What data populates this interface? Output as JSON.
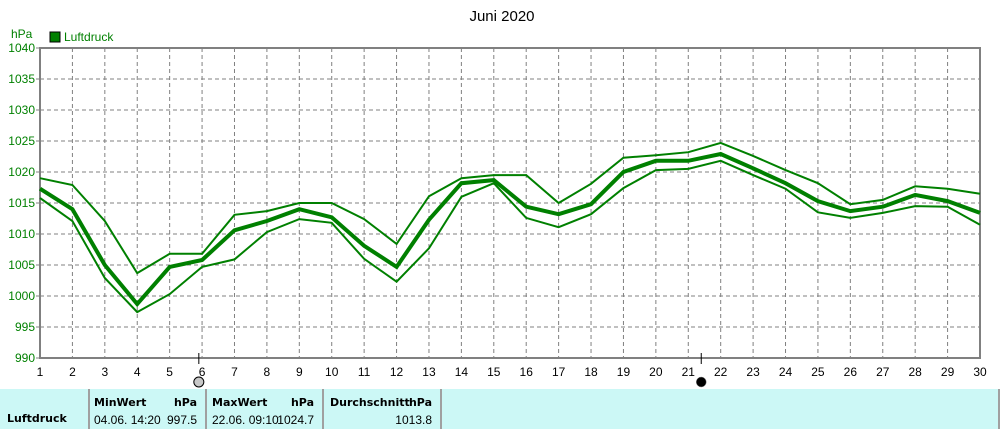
{
  "chart_data": {
    "type": "line",
    "title": "Juni 2020",
    "ylabel": "hPa",
    "xlabel": "",
    "ylim": [
      990,
      1040
    ],
    "yticks": [
      990,
      995,
      1000,
      1005,
      1010,
      1015,
      1020,
      1025,
      1030,
      1035,
      1040
    ],
    "x": [
      1,
      2,
      3,
      4,
      5,
      6,
      7,
      8,
      9,
      10,
      11,
      12,
      13,
      14,
      15,
      16,
      17,
      18,
      19,
      20,
      21,
      22,
      23,
      24,
      25,
      26,
      27,
      28,
      29,
      30
    ],
    "grid": true,
    "legend": {
      "position": "top-left",
      "entries": [
        "Luftdruck"
      ]
    },
    "series": [
      {
        "name": "Luftdruck Max",
        "width": 2,
        "values": [
          1019.0,
          1017.9,
          1012.1,
          1003.7,
          1006.8,
          1006.8,
          1013.1,
          1013.7,
          1015.0,
          1015.0,
          1012.4,
          1008.4,
          1016.1,
          1019.0,
          1019.5,
          1019.5,
          1015.0,
          1018.1,
          1022.3,
          1022.7,
          1023.2,
          1024.7,
          1022.6,
          1020.3,
          1018.2,
          1014.8,
          1015.5,
          1017.7,
          1017.3,
          1016.5
        ]
      },
      {
        "name": "Luftdruck",
        "width": 4,
        "values": [
          1017.3,
          1014.0,
          1005.0,
          998.7,
          1004.7,
          1005.8,
          1010.6,
          1012.1,
          1014.0,
          1012.7,
          1008.1,
          1004.7,
          1012.3,
          1018.2,
          1018.7,
          1014.4,
          1013.2,
          1014.8,
          1020.0,
          1021.8,
          1021.8,
          1022.9,
          1020.6,
          1018.2,
          1015.3,
          1013.7,
          1014.4,
          1016.3,
          1015.3,
          1013.4
        ]
      },
      {
        "name": "Luftdruck Min",
        "width": 2,
        "values": [
          1015.8,
          1012.1,
          1002.9,
          997.4,
          1000.3,
          1004.7,
          1005.9,
          1010.3,
          1012.4,
          1011.8,
          1006.0,
          1002.3,
          1007.7,
          1016.0,
          1018.2,
          1012.6,
          1011.1,
          1013.2,
          1017.4,
          1020.3,
          1020.5,
          1021.8,
          1019.5,
          1017.3,
          1013.5,
          1012.6,
          1013.4,
          1014.5,
          1014.4,
          1011.5
        ]
      }
    ],
    "annotations": [
      {
        "type": "full-moon",
        "x": 5.9
      },
      {
        "type": "new-moon",
        "x": 21.4
      }
    ],
    "color": "#008000"
  },
  "legend": {
    "label": "Luftdruck",
    "color": "#008000"
  },
  "stats": {
    "row_label": "Luftdruck",
    "min": {
      "header": "MinWert",
      "unit": "hPa",
      "datetime": "04.06.  14:20",
      "value": "997.5"
    },
    "max": {
      "header": "MaxWert",
      "unit": "hPa",
      "datetime": "22.06.  09:10",
      "value": "1024.7"
    },
    "avg": {
      "header": "Durchschnitt",
      "unit": "hPa",
      "value": "1013.8"
    }
  }
}
